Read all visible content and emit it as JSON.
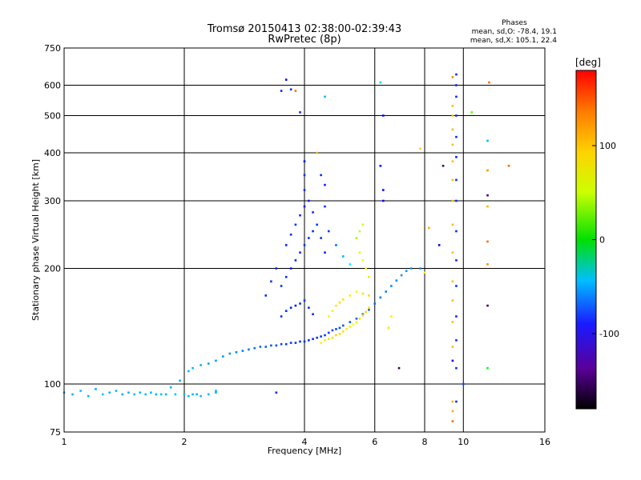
{
  "chart_data": {
    "type": "scatter",
    "title": "Tromsø 20150413 02:38:00-02:39:43",
    "subtitle": "RwPretec (8p)",
    "xlabel": "Frequency [MHz]",
    "ylabel": "Stationary phase Virtual Height [km]",
    "xscale": "log",
    "yscale": "log",
    "xlim": [
      1,
      16
    ],
    "ylim": [
      75,
      750
    ],
    "xticks": [
      1,
      2,
      4,
      6,
      8,
      10,
      16
    ],
    "xtick_labels": [
      "1",
      "2",
      "4",
      "6",
      "8",
      "10",
      "16"
    ],
    "yticks": [
      75,
      100,
      200,
      300,
      400,
      500,
      600,
      750
    ],
    "ytick_labels": [
      "75",
      "100",
      "200",
      "300",
      "400",
      "500",
      "600",
      "750"
    ],
    "grid": true,
    "stats_header": "Phases",
    "stats": [
      "mean, sd,O: -78.4, 19.1",
      "mean, sd,X: 105.1, 22.4"
    ],
    "colorbar": {
      "label": "[deg]",
      "range": [
        -180,
        180
      ],
      "ticks": [
        100,
        0,
        -100
      ],
      "tick_labels": [
        "100",
        "0",
        "-100"
      ]
    },
    "series": [
      {
        "color_mode": "phase",
        "points": [
          [
            1.0,
            95,
            -60
          ],
          [
            1.05,
            94,
            -62
          ],
          [
            1.1,
            96,
            -58
          ],
          [
            1.15,
            93,
            -60
          ],
          [
            1.2,
            97,
            -62
          ],
          [
            1.25,
            94,
            -55
          ],
          [
            1.3,
            95,
            -60
          ],
          [
            1.35,
            96,
            -58
          ],
          [
            1.4,
            94,
            -63
          ],
          [
            1.45,
            95,
            -60
          ],
          [
            1.5,
            94,
            -57
          ],
          [
            1.55,
            95,
            -61
          ],
          [
            1.6,
            94,
            -59
          ],
          [
            1.65,
            95,
            -60
          ],
          [
            1.7,
            94,
            -62
          ],
          [
            1.75,
            94,
            -58
          ],
          [
            1.8,
            94,
            -60
          ],
          [
            1.85,
            98,
            -61
          ],
          [
            1.9,
            94,
            -57
          ],
          [
            1.95,
            102,
            -62
          ],
          [
            2.0,
            94,
            -60
          ],
          [
            2.05,
            93,
            -58
          ],
          [
            2.1,
            94,
            -60
          ],
          [
            2.15,
            94,
            -62
          ],
          [
            2.2,
            93,
            -58
          ],
          [
            2.3,
            94,
            -60
          ],
          [
            2.4,
            95,
            -60
          ],
          [
            2.05,
            108,
            -58
          ],
          [
            2.1,
            110,
            -60
          ],
          [
            2.2,
            112,
            -62
          ],
          [
            2.3,
            113,
            -65
          ],
          [
            2.4,
            115,
            -66
          ],
          [
            2.5,
            118,
            -68
          ],
          [
            2.6,
            120,
            -70
          ],
          [
            2.7,
            121,
            -72
          ],
          [
            2.8,
            122,
            -75
          ],
          [
            2.9,
            123,
            -78
          ],
          [
            3.0,
            124,
            -80
          ],
          [
            3.1,
            125,
            -82
          ],
          [
            3.2,
            125,
            -85
          ],
          [
            3.3,
            126,
            -88
          ],
          [
            3.4,
            126,
            -90
          ],
          [
            3.5,
            127,
            -92
          ],
          [
            3.6,
            127,
            -95
          ],
          [
            3.7,
            128,
            -96
          ],
          [
            3.8,
            128,
            -98
          ],
          [
            3.9,
            129,
            -98
          ],
          [
            4.0,
            129,
            -100
          ],
          [
            4.1,
            130,
            -100
          ],
          [
            4.2,
            131,
            -100
          ],
          [
            4.3,
            132,
            -98
          ],
          [
            4.4,
            133,
            -96
          ],
          [
            4.5,
            134,
            -95
          ],
          [
            4.6,
            136,
            -93
          ],
          [
            4.7,
            138,
            -92
          ],
          [
            4.8,
            139,
            -90
          ],
          [
            4.9,
            140,
            -90
          ],
          [
            5.0,
            142,
            -88
          ],
          [
            5.2,
            145,
            -86
          ],
          [
            5.4,
            148,
            -85
          ],
          [
            5.6,
            152,
            -84
          ],
          [
            5.8,
            156,
            -82
          ],
          [
            6.0,
            162,
            -80
          ],
          [
            6.2,
            168,
            -78
          ],
          [
            6.4,
            174,
            -76
          ],
          [
            6.6,
            180,
            -74
          ],
          [
            6.8,
            186,
            -72
          ],
          [
            7.0,
            192,
            -70
          ],
          [
            7.2,
            197,
            -70
          ],
          [
            7.4,
            200,
            -68
          ],
          [
            4.4,
            128,
            110
          ],
          [
            4.5,
            130,
            112
          ],
          [
            4.6,
            131,
            115
          ],
          [
            4.7,
            132,
            118
          ],
          [
            4.8,
            134,
            120
          ],
          [
            4.9,
            135,
            118
          ],
          [
            5.0,
            137,
            115
          ],
          [
            5.1,
            139,
            112
          ],
          [
            5.2,
            141,
            110
          ],
          [
            5.3,
            143,
            108
          ],
          [
            5.4,
            145,
            112
          ],
          [
            5.5,
            148,
            115
          ],
          [
            5.6,
            151,
            118
          ],
          [
            5.7,
            154,
            120
          ],
          [
            5.8,
            158,
            115
          ],
          [
            4.6,
            150,
            110
          ],
          [
            4.7,
            155,
            112
          ],
          [
            4.8,
            160,
            115
          ],
          [
            4.9,
            163,
            118
          ],
          [
            5.0,
            166,
            115
          ],
          [
            5.2,
            170,
            112
          ],
          [
            5.4,
            174,
            110
          ],
          [
            5.6,
            172,
            115
          ],
          [
            5.8,
            170,
            118
          ],
          [
            3.5,
            150,
            -100
          ],
          [
            3.6,
            155,
            -102
          ],
          [
            3.7,
            158,
            -104
          ],
          [
            3.8,
            160,
            -105
          ],
          [
            3.9,
            162,
            -100
          ],
          [
            4.0,
            165,
            -98
          ],
          [
            4.1,
            158,
            -100
          ],
          [
            4.2,
            152,
            -102
          ],
          [
            3.5,
            180,
            -100
          ],
          [
            3.6,
            190,
            -102
          ],
          [
            3.7,
            200,
            -105
          ],
          [
            3.8,
            210,
            -103
          ],
          [
            3.9,
            220,
            -100
          ],
          [
            4.0,
            230,
            -98
          ],
          [
            4.1,
            240,
            -100
          ],
          [
            4.2,
            250,
            -102
          ],
          [
            3.6,
            230,
            -104
          ],
          [
            3.7,
            245,
            -100
          ],
          [
            3.8,
            260,
            -98
          ],
          [
            3.9,
            275,
            -102
          ],
          [
            4.0,
            290,
            -105
          ],
          [
            4.0,
            320,
            -100
          ],
          [
            4.0,
            350,
            -98
          ],
          [
            4.0,
            380,
            -110
          ],
          [
            4.1,
            300,
            -102
          ],
          [
            4.2,
            280,
            -100
          ],
          [
            4.3,
            260,
            -98
          ],
          [
            4.4,
            240,
            -100
          ],
          [
            4.5,
            220,
            -102
          ],
          [
            3.4,
            200,
            -100
          ],
          [
            3.3,
            185,
            -98
          ],
          [
            3.2,
            170,
            -100
          ],
          [
            4.4,
            350,
            -100
          ],
          [
            4.5,
            330,
            -102
          ],
          [
            4.5,
            290,
            -100
          ],
          [
            4.6,
            250,
            -98
          ],
          [
            4.8,
            230,
            -80
          ],
          [
            5.0,
            215,
            -60
          ],
          [
            5.2,
            205,
            -40
          ],
          [
            5.4,
            240,
            80
          ],
          [
            5.5,
            250,
            90
          ],
          [
            5.6,
            260,
            95
          ],
          [
            5.5,
            220,
            100
          ],
          [
            5.6,
            210,
            105
          ],
          [
            5.7,
            200,
            110
          ],
          [
            5.8,
            190,
            115
          ],
          [
            3.6,
            620,
            -110
          ],
          [
            3.5,
            580,
            -100
          ],
          [
            3.7,
            585,
            -100
          ],
          [
            3.9,
            510,
            -100
          ],
          [
            3.8,
            580,
            150
          ],
          [
            4.5,
            560,
            -60
          ],
          [
            4.3,
            400,
            130
          ],
          [
            6.2,
            610,
            -50
          ],
          [
            6.3,
            500,
            -110
          ],
          [
            6.2,
            370,
            -110
          ],
          [
            6.3,
            320,
            -110
          ],
          [
            6.3,
            300,
            -110
          ],
          [
            7.8,
            410,
            120
          ],
          [
            8.2,
            255,
            130
          ],
          [
            8.7,
            230,
            -110
          ],
          [
            8.9,
            370,
            -150
          ],
          [
            9.4,
            630,
            140
          ],
          [
            9.4,
            530,
            125
          ],
          [
            9.4,
            500,
            125
          ],
          [
            9.4,
            460,
            125
          ],
          [
            9.4,
            420,
            125
          ],
          [
            9.4,
            380,
            125
          ],
          [
            9.4,
            340,
            125
          ],
          [
            9.4,
            300,
            125
          ],
          [
            9.4,
            260,
            125
          ],
          [
            9.4,
            220,
            125
          ],
          [
            9.4,
            185,
            125
          ],
          [
            9.4,
            165,
            125
          ],
          [
            9.4,
            145,
            125
          ],
          [
            9.4,
            125,
            125
          ],
          [
            9.4,
            115,
            -110
          ],
          [
            9.4,
            90,
            130
          ],
          [
            9.4,
            85,
            130
          ],
          [
            9.4,
            80,
            150
          ],
          [
            9.6,
            640,
            -100
          ],
          [
            9.6,
            600,
            -100
          ],
          [
            9.6,
            560,
            -100
          ],
          [
            9.6,
            500,
            -100
          ],
          [
            9.6,
            440,
            -100
          ],
          [
            9.6,
            390,
            -100
          ],
          [
            9.6,
            340,
            -100
          ],
          [
            9.6,
            300,
            -100
          ],
          [
            9.6,
            250,
            -100
          ],
          [
            9.6,
            210,
            -100
          ],
          [
            9.6,
            180,
            -100
          ],
          [
            9.6,
            150,
            -100
          ],
          [
            9.6,
            130,
            -100
          ],
          [
            9.6,
            110,
            -100
          ],
          [
            9.6,
            90,
            -100
          ],
          [
            10.5,
            510,
            60
          ],
          [
            11.5,
            430,
            -60
          ],
          [
            11.6,
            610,
            150
          ],
          [
            11.5,
            360,
            140
          ],
          [
            11.5,
            310,
            -170
          ],
          [
            11.5,
            290,
            130
          ],
          [
            11.5,
            235,
            150
          ],
          [
            11.5,
            205,
            140
          ],
          [
            11.5,
            160,
            -160
          ],
          [
            11.5,
            110,
            30
          ],
          [
            13.0,
            370,
            150
          ],
          [
            10.0,
            100,
            -90
          ],
          [
            6.9,
            110,
            -170
          ],
          [
            3.4,
            95,
            -100
          ],
          [
            2.4,
            96,
            -60
          ],
          [
            7.8,
            200,
            -70
          ],
          [
            8.0,
            195,
            110
          ],
          [
            6.6,
            150,
            110
          ],
          [
            6.5,
            140,
            115
          ]
        ]
      }
    ]
  }
}
